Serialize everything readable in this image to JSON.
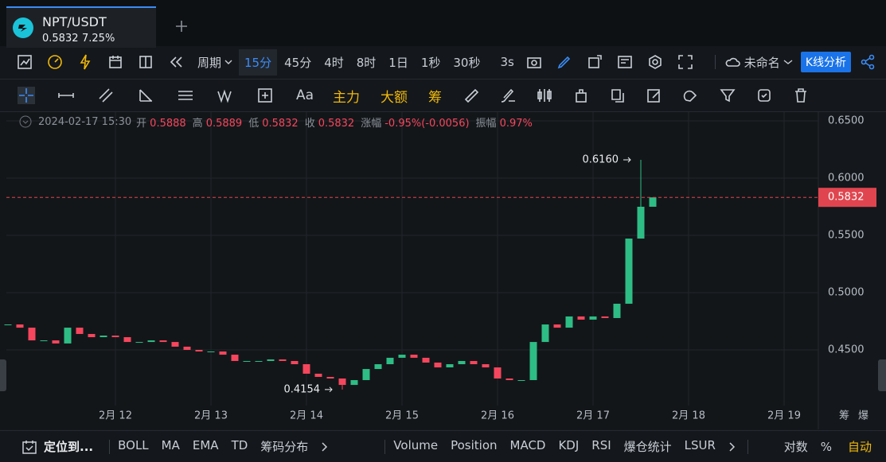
{
  "tab": {
    "symbol": "NPT/USDT",
    "price": "0.5832",
    "change": "7.25%"
  },
  "toolbar": {
    "period": "周期",
    "intervals": [
      "15分",
      "45分",
      "4时",
      "8时",
      "1日",
      "1秒",
      "30秒"
    ],
    "active_interval": 0,
    "refresh": "3s",
    "layout_name": "未命名",
    "analysis_button": "K线分析"
  },
  "drawing_tools": {
    "text_tool": "Aa",
    "indicators": [
      "主力",
      "大额",
      "筹"
    ]
  },
  "info_bar": {
    "datetime": "2024-02-17 15:30",
    "items": [
      {
        "label": "开",
        "value": "0.5888"
      },
      {
        "label": "高",
        "value": "0.5889"
      },
      {
        "label": "低",
        "value": "0.5832"
      },
      {
        "label": "收",
        "value": "0.5832"
      },
      {
        "label": "涨幅",
        "value": "-0.95%(-0.0056)"
      },
      {
        "label": "振幅",
        "value": "0.97%"
      }
    ]
  },
  "chart_data": {
    "type": "candlestick",
    "up_color": "#2ebd85",
    "down_color": "#f6465d",
    "values": [
      0.4722,
      0.4694,
      0.4583,
      0.4583,
      0.4556,
      0.4694,
      0.4639,
      0.4611,
      0.4625,
      0.4611,
      0.4569,
      0.4569,
      0.4583,
      0.4569,
      0.4528,
      0.45,
      0.4486,
      0.4486,
      0.4458,
      0.4403,
      0.4403,
      0.4403,
      0.4417,
      0.4403,
      0.4375,
      0.4292,
      0.4264,
      0.425,
      0.4194,
      0.4236,
      0.4333,
      0.4375,
      0.4431,
      0.4458,
      0.4431,
      0.4389,
      0.4347,
      0.4375,
      0.4403,
      0.4375,
      0.4347,
      0.425,
      0.4236,
      0.4236,
      0.4569,
      0.4722,
      0.4694,
      0.4792,
      0.4764,
      0.4792,
      0.4778,
      0.4903,
      0.5472,
      0.575,
      0.5832
    ],
    "xlim": [
      0,
      68
    ],
    "xticks": [
      {
        "value": 9,
        "label": "2月 12"
      },
      {
        "value": 17,
        "label": "2月 13"
      },
      {
        "value": 25,
        "label": "2月 14"
      },
      {
        "value": 33,
        "label": "2月 15"
      },
      {
        "value": 41,
        "label": "2月 16"
      },
      {
        "value": 49,
        "label": "2月 17"
      },
      {
        "value": 57,
        "label": "2月 18"
      },
      {
        "value": 65,
        "label": "2月 19"
      }
    ],
    "ylim": [
      0.4,
      0.66
    ],
    "yticks": [
      {
        "value": 0.45,
        "label": "0.4500"
      },
      {
        "value": 0.5,
        "label": "0.5000"
      },
      {
        "value": 0.55,
        "label": "0.5500"
      },
      {
        "value": 0.6,
        "label": "0.6000"
      },
      {
        "value": 0.65,
        "label": "0.6500"
      }
    ],
    "grid": true,
    "annotations": [
      {
        "x": 53,
        "value": 0.616,
        "label": "0.6160"
      },
      {
        "x": 28,
        "value": 0.4154,
        "label": "0.4154"
      }
    ],
    "last_price": {
      "value": 0.5832,
      "label": "0.5832",
      "color": "#e0454f"
    },
    "side_labels": [
      "筹",
      "爆"
    ]
  },
  "bottom_bar": {
    "locate": "定位到...",
    "main_indicators": [
      "BOLL",
      "MA",
      "EMA",
      "TD",
      "筹码分布"
    ],
    "sub_indicators": [
      "Volume",
      "Position",
      "MACD",
      "KDJ",
      "RSI",
      "爆仓统计",
      "LSUR"
    ],
    "log": "对数",
    "percent": "%",
    "auto": "自动"
  }
}
